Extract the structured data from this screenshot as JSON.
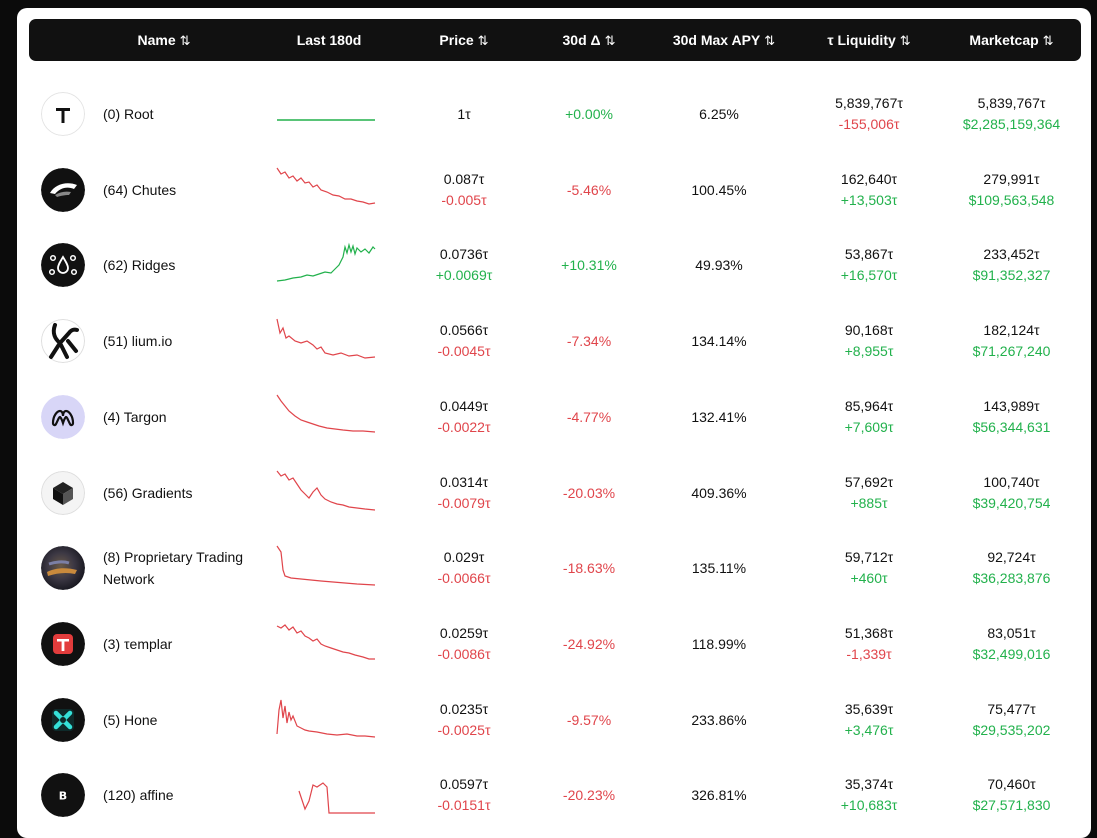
{
  "colors": {
    "positive": "#22b14c",
    "negative": "#e0454b",
    "header_bg": "#111111"
  },
  "header": {
    "name": "Name",
    "chart": "Last 180d",
    "price": "Price",
    "delta": "30d Δ",
    "apy": "30d Max APY",
    "liquidity": "τ Liquidity",
    "marketcap": "Marketcap",
    "sort_icon": "⇅"
  },
  "rows": [
    {
      "name": "(0) Root",
      "icon": "root-logo-icon",
      "trend": "flat",
      "price": "1τ",
      "price_change": "",
      "delta": "+0.00%",
      "delta_dir": "pos",
      "apy": "6.25%",
      "liquidity": "5,839,767τ",
      "liquidity_change": "-155,006τ",
      "liq_dir": "neg",
      "marketcap": "5,839,767τ",
      "marketcap_usd": "$2,285,159,364"
    },
    {
      "name": "(64) Chutes",
      "icon": "chutes-logo-icon",
      "trend": "down",
      "price": "0.087τ",
      "price_change": "-0.005τ",
      "price_dir": "neg",
      "delta": "-5.46%",
      "delta_dir": "neg",
      "apy": "100.45%",
      "liquidity": "162,640τ",
      "liquidity_change": "+13,503τ",
      "liq_dir": "pos",
      "marketcap": "279,991τ",
      "marketcap_usd": "$109,563,548"
    },
    {
      "name": "(62) Ridges",
      "icon": "ridges-logo-icon",
      "trend": "up",
      "price": "0.0736τ",
      "price_change": "+0.0069τ",
      "price_dir": "pos",
      "delta": "+10.31%",
      "delta_dir": "pos",
      "apy": "49.93%",
      "liquidity": "53,867τ",
      "liquidity_change": "+16,570τ",
      "liq_dir": "pos",
      "marketcap": "233,452τ",
      "marketcap_usd": "$91,352,327"
    },
    {
      "name": "(51) lium.io",
      "icon": "lium-logo-icon",
      "trend": "down",
      "price": "0.0566τ",
      "price_change": "-0.0045τ",
      "price_dir": "neg",
      "delta": "-7.34%",
      "delta_dir": "neg",
      "apy": "134.14%",
      "liquidity": "90,168τ",
      "liquidity_change": "+8,955τ",
      "liq_dir": "pos",
      "marketcap": "182,124τ",
      "marketcap_usd": "$71,267,240"
    },
    {
      "name": "(4) Targon",
      "icon": "targon-logo-icon",
      "trend": "down",
      "price": "0.0449τ",
      "price_change": "-0.0022τ",
      "price_dir": "neg",
      "delta": "-4.77%",
      "delta_dir": "neg",
      "apy": "132.41%",
      "liquidity": "85,964τ",
      "liquidity_change": "+7,609τ",
      "liq_dir": "pos",
      "marketcap": "143,989τ",
      "marketcap_usd": "$56,344,631"
    },
    {
      "name": "(56) Gradients",
      "icon": "gradients-logo-icon",
      "trend": "down",
      "price": "0.0314τ",
      "price_change": "-0.0079τ",
      "price_dir": "neg",
      "delta": "-20.03%",
      "delta_dir": "neg",
      "apy": "409.36%",
      "liquidity": "57,692τ",
      "liquidity_change": "+885τ",
      "liq_dir": "pos",
      "marketcap": "100,740τ",
      "marketcap_usd": "$39,420,754"
    },
    {
      "name": "(8) Proprietary Trading Network",
      "icon": "proprietary-logo-icon",
      "trend": "down",
      "price": "0.029τ",
      "price_change": "-0.0066τ",
      "price_dir": "neg",
      "delta": "-18.63%",
      "delta_dir": "neg",
      "apy": "135.11%",
      "liquidity": "59,712τ",
      "liquidity_change": "+460τ",
      "liq_dir": "pos",
      "marketcap": "92,724τ",
      "marketcap_usd": "$36,283,876"
    },
    {
      "name": "(3) τemplar",
      "icon": "templar-logo-icon",
      "trend": "down",
      "price": "0.0259τ",
      "price_change": "-0.0086τ",
      "price_dir": "neg",
      "delta": "-24.92%",
      "delta_dir": "neg",
      "apy": "118.99%",
      "liquidity": "51,368τ",
      "liquidity_change": "-1,339τ",
      "liq_dir": "neg",
      "marketcap": "83,051τ",
      "marketcap_usd": "$32,499,016"
    },
    {
      "name": "(5) Hone",
      "icon": "hone-logo-icon",
      "trend": "down",
      "price": "0.0235τ",
      "price_change": "-0.0025τ",
      "price_dir": "neg",
      "delta": "-9.57%",
      "delta_dir": "neg",
      "apy": "233.86%",
      "liquidity": "35,639τ",
      "liquidity_change": "+3,476τ",
      "liq_dir": "pos",
      "marketcap": "75,477τ",
      "marketcap_usd": "$29,535,202"
    },
    {
      "name": "(120) affine",
      "icon": "affine-logo-icon",
      "trend": "down",
      "price": "0.0597τ",
      "price_change": "-0.0151τ",
      "price_dir": "neg",
      "delta": "-20.23%",
      "delta_dir": "neg",
      "apy": "326.81%",
      "liquidity": "35,374τ",
      "liquidity_change": "+10,683τ",
      "liq_dir": "pos",
      "marketcap": "70,460τ",
      "marketcap_usd": "$27,571,830"
    }
  ]
}
